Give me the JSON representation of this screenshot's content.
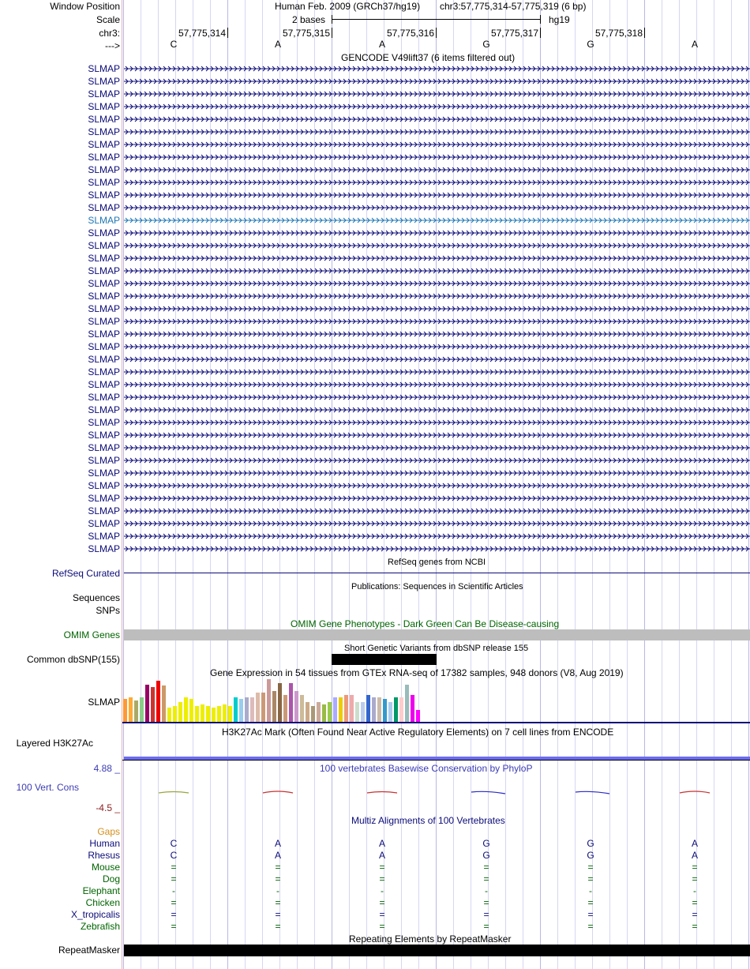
{
  "header": {
    "window_position_label": "Window Position",
    "assembly": "Human Feb. 2009 (GRCh37/hg19)",
    "position": "chr3:57,775,314-57,775,319 (6 bp)",
    "scale_label": "Scale",
    "scale_text": "2 bases",
    "db": "hg19",
    "chrom_label": "chr3:",
    "strand_label": "--->"
  },
  "ruler": {
    "ticks": [
      "57,775,314",
      "57,775,315",
      "57,775,316",
      "57,775,317",
      "57,775,318"
    ],
    "bases": [
      "C",
      "A",
      "A",
      "G",
      "G",
      "A"
    ]
  },
  "gencode": {
    "title": "GENCODE V49lift37 (6 items filtered out)",
    "gene_label": "SLMAP",
    "rows": 39,
    "highlight_row": 12,
    "color": "#0c0c78",
    "highlight_color": "#1f77b4"
  },
  "refseq": {
    "label": "RefSeq Curated",
    "title": "RefSeq genes from NCBI"
  },
  "publications": {
    "label_line1": "Sequences",
    "label_line2": "SNPs",
    "title": "Publications: Sequences in Scientific Articles"
  },
  "omim": {
    "label": "OMIM Genes",
    "title": "OMIM Gene Phenotypes - Dark Green Can Be Disease-causing",
    "color": "#006400"
  },
  "dbsnp": {
    "label": "Common dbSNP(155)",
    "title": "Short Genetic Variants from dbSNP release 155"
  },
  "gtex": {
    "label": "SLMAP",
    "title": "Gene Expression in 54 tissues from GTEx RNA-seq of 17382 samples, 948 donors (V8, Aug 2019)",
    "heights": [
      30,
      32,
      28,
      32,
      48,
      45,
      53,
      47,
      18,
      20,
      25,
      32,
      30,
      20,
      22,
      20,
      18,
      20,
      22,
      20,
      32,
      30,
      32,
      32,
      38,
      38,
      55,
      40,
      50,
      35,
      50,
      40,
      35,
      25,
      20,
      25,
      22,
      25,
      32,
      32,
      35,
      35,
      25,
      25,
      35,
      32,
      32,
      30,
      25,
      32,
      32,
      48,
      35,
      15
    ],
    "colors": [
      "#ff9933",
      "#ffaa33",
      "#aaaa66",
      "#88cc88",
      "#990066",
      "#cc3333",
      "#ee0000",
      "#cc9966",
      "#eeee00",
      "#eeee00",
      "#eeee00",
      "#eeee00",
      "#eeee00",
      "#eeee00",
      "#eeee00",
      "#eeee00",
      "#eeee00",
      "#eeee00",
      "#eeee00",
      "#eeee00",
      "#00cccc",
      "#99ccee",
      "#aaaacc",
      "#ddbbbb",
      "#ddbbaa",
      "#cc9977",
      "#cc9999",
      "#aa8866",
      "#886644",
      "#cc9977",
      "#aa55aa",
      "#cc99cc",
      "#ccbb99",
      "#ccaa88",
      "#aa9977",
      "#ccaa99",
      "#99bb44",
      "#99cc44",
      "#aaaaff",
      "#eecc00",
      "#ee9977",
      "#eeaaaa",
      "#ccddcc",
      "#bbccee",
      "#3366cc",
      "#aaaacc",
      "#ccbbaa",
      "#3399cc",
      "#aaccee",
      "#009966",
      "#ffcccc",
      "#99bbbb",
      "#ee00ee",
      "#ff00ff"
    ]
  },
  "h3k27ac": {
    "label": "Layered H3K27Ac",
    "title": "H3K27Ac Mark (Often Found Near Active Regulatory Elements) on 7 cell lines from ENCODE"
  },
  "phylop": {
    "label": "100 Vert. Cons",
    "max": "4.88 _",
    "min": "-4.5 _",
    "title": "100 vertebrates Basewise Conservation by PhyloP"
  },
  "multiz": {
    "title": "Multiz Alignments of 100 Vertebrates",
    "gaps_label": "Gaps",
    "species": [
      {
        "name": "Human",
        "bases": [
          "C",
          "A",
          "A",
          "G",
          "G",
          "A"
        ],
        "color": "#0c0c78"
      },
      {
        "name": "Rhesus",
        "bases": [
          "C",
          "A",
          "A",
          "G",
          "G",
          "A"
        ],
        "color": "#0c0c78"
      },
      {
        "name": "Mouse",
        "bases": [
          "=",
          "=",
          "=",
          "=",
          "=",
          "="
        ],
        "color": "#006400"
      },
      {
        "name": "Dog",
        "bases": [
          "=",
          "=",
          "=",
          "=",
          "=",
          "="
        ],
        "color": "#006400"
      },
      {
        "name": "Elephant",
        "bases": [
          "-",
          "-",
          "-",
          "-",
          "-",
          "-"
        ],
        "color": "#006400"
      },
      {
        "name": "Chicken",
        "bases": [
          "=",
          "=",
          "=",
          "=",
          "=",
          "="
        ],
        "color": "#006400"
      },
      {
        "name": "X_tropicalis",
        "bases": [
          "=",
          "=",
          "=",
          "=",
          "=",
          "="
        ],
        "color": "#0c0c78"
      },
      {
        "name": "Zebrafish",
        "bases": [
          "=",
          "=",
          "=",
          "=",
          "=",
          "="
        ],
        "color": "#006400"
      }
    ]
  },
  "repeatmasker": {
    "label": "RepeatMasker",
    "title": "Repeating Elements by RepeatMasker"
  }
}
